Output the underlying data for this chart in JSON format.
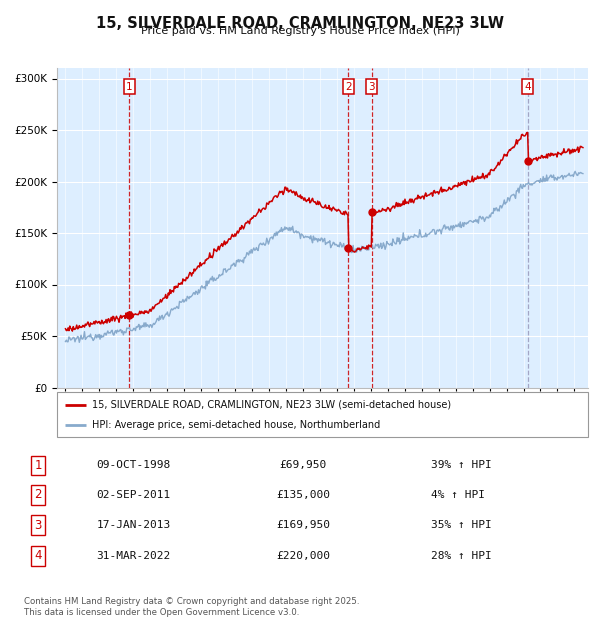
{
  "title": "15, SILVERDALE ROAD, CRAMLINGTON, NE23 3LW",
  "subtitle": "Price paid vs. HM Land Registry's House Price Index (HPI)",
  "ylim": [
    0,
    310000
  ],
  "yticks": [
    0,
    50000,
    100000,
    150000,
    200000,
    250000,
    300000
  ],
  "background_color": "#ddeeff",
  "red_line_color": "#cc0000",
  "blue_line_color": "#88aacc",
  "grid_color": "#ffffff",
  "vline_color_solid": "#cc0000",
  "vline_color_dashed": "#aaaacc",
  "marker_box_color": "#cc0000",
  "dot_color": "#cc0000",
  "transactions": [
    {
      "num": 1,
      "date": "09-OCT-1998",
      "price": 69950,
      "year": 1998.77,
      "hpi_pct": "39%",
      "direction": "↑",
      "vline_style": "dashed_red"
    },
    {
      "num": 2,
      "date": "02-SEP-2011",
      "price": 135000,
      "year": 2011.67,
      "hpi_pct": "4%",
      "direction": "↑",
      "vline_style": "dashed_red"
    },
    {
      "num": 3,
      "date": "17-JAN-2013",
      "price": 169950,
      "year": 2013.04,
      "hpi_pct": "35%",
      "direction": "↑",
      "vline_style": "dashed_red"
    },
    {
      "num": 4,
      "date": "31-MAR-2022",
      "price": 220000,
      "year": 2022.25,
      "hpi_pct": "28%",
      "direction": "↑",
      "vline_style": "dashed_blue"
    }
  ],
  "legend_label_red": "15, SILVERDALE ROAD, CRAMLINGTON, NE23 3LW (semi-detached house)",
  "legend_label_blue": "HPI: Average price, semi-detached house, Northumberland",
  "footer": "Contains HM Land Registry data © Crown copyright and database right 2025.\nThis data is licensed under the Open Government Licence v3.0.",
  "xmin": 1994.5,
  "xmax": 2025.8
}
